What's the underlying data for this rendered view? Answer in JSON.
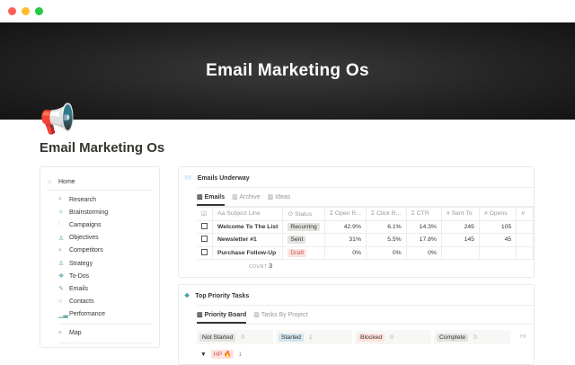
{
  "window": {
    "controls": {
      "close": "#ff5f57",
      "minimize": "#febc2e",
      "maximize": "#28c840"
    }
  },
  "cover": {
    "title": "Email Marketing Os"
  },
  "page": {
    "icon": "megaphone-icon",
    "title": "Email Marketing Os"
  },
  "sidebar": {
    "home": "Home",
    "items": [
      {
        "label": "Research",
        "icon": "search-icon"
      },
      {
        "label": "Brainstorming",
        "icon": "sparkle-icon"
      },
      {
        "label": "Campaigns",
        "icon": "chart-icon"
      },
      {
        "label": "Objectives",
        "icon": "person-icon"
      },
      {
        "label": "Competitors",
        "icon": "search-icon"
      },
      {
        "label": "Strategy",
        "icon": "person-icon"
      },
      {
        "label": "To-Dos",
        "icon": "layers-icon"
      },
      {
        "label": "Emails",
        "icon": "pen-icon"
      },
      {
        "label": "Contacts",
        "icon": "circle-icon"
      },
      {
        "label": "Performance",
        "icon": "bar-chart-icon"
      }
    ],
    "map": "Map"
  },
  "emails": {
    "title": "Emails Underway",
    "tabs": [
      "Emails",
      "Archive",
      "Ideas"
    ],
    "columns": [
      "Aa Subject Line",
      "⊙ Status",
      "Σ Open R...",
      "Σ Click R...",
      "Σ CTR",
      "# Sent To",
      "# Opens",
      "# "
    ],
    "rows": [
      {
        "subject": "Welcome To The List",
        "status": "Recurring",
        "open": "42.9%",
        "click": "6.1%",
        "ctr": "14.3%",
        "sent": "245",
        "opens": "105"
      },
      {
        "subject": "Newsletter #1",
        "status": "Sent",
        "open": "31%",
        "click": "5.5%",
        "ctr": "17.8%",
        "sent": "145",
        "opens": "45"
      },
      {
        "subject": "Purchase Follow-Up",
        "status": "Draft",
        "open": "0%",
        "click": "0%",
        "ctr": "0%",
        "sent": "",
        "opens": ""
      }
    ],
    "count_label": "COUNT",
    "count": "3",
    "status_colors": {
      "Recurring": "#e3e2e0",
      "Sent": "#e3e2e0",
      "Draft": "#fbe4e0"
    }
  },
  "tasks": {
    "title": "Top Priority Tasks",
    "tabs": [
      "Priority Board",
      "Tasks By Project"
    ],
    "columns": [
      {
        "label": "Not Started",
        "count": "0",
        "color": "#e3e2e0"
      },
      {
        "label": "Started",
        "count": "1",
        "color": "#d3e5ef"
      },
      {
        "label": "Blocked",
        "count": "0",
        "color": "#ffe2dd"
      },
      {
        "label": "Complete",
        "count": "0",
        "color": "#e3e2e0"
      }
    ],
    "hidden_label": "Hi",
    "group": {
      "label": "HP 🔥",
      "count": "1"
    }
  }
}
